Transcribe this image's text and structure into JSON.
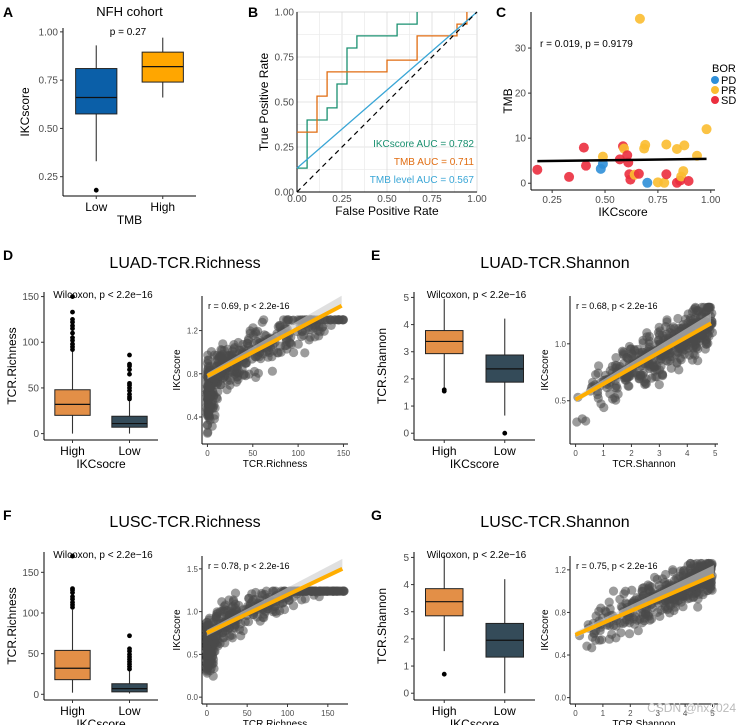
{
  "chart_data": [
    {
      "panel": "A",
      "type": "box",
      "title": "NFH cohort",
      "xlabel": "TMB",
      "ylabel": "IKCscore",
      "categories": [
        "Low",
        "High"
      ],
      "yticks": [
        "0.25",
        "0.50",
        "0.75",
        "1.00"
      ],
      "ylim": [
        0.15,
        1.02
      ],
      "annotation": "p = 0.27",
      "boxes": [
        {
          "name": "Low",
          "color": "#0b5fa8",
          "min": 0.33,
          "q1": 0.575,
          "median": 0.66,
          "q3": 0.81,
          "max": 0.93,
          "outliers": [
            0.18
          ]
        },
        {
          "name": "High",
          "color": "#ffa600",
          "min": 0.66,
          "q1": 0.74,
          "median": 0.82,
          "q3": 0.895,
          "max": 0.97,
          "outliers": []
        }
      ]
    },
    {
      "panel": "B",
      "type": "line",
      "xlabel": "False Positive Rate",
      "ylabel": "True Positive Rate",
      "xticks": [
        "0.00",
        "0.25",
        "0.50",
        "0.75",
        "1.00"
      ],
      "yticks": [
        "0.00",
        "0.25",
        "0.50",
        "0.75",
        "1.00"
      ],
      "xlim": [
        0,
        1
      ],
      "ylim": [
        0,
        1
      ],
      "grid": true,
      "series": [
        {
          "name": "IKCscore AUC = 0.782",
          "color": "#1a9070",
          "points": [
            [
              0,
              0.133
            ],
            [
              0.056,
              0.133
            ],
            [
              0.056,
              0.333
            ],
            [
              0.056,
              0.4
            ],
            [
              0.167,
              0.4
            ],
            [
              0.167,
              0.467
            ],
            [
              0.222,
              0.467
            ],
            [
              0.222,
              0.6
            ],
            [
              0.278,
              0.6
            ],
            [
              0.278,
              0.8
            ],
            [
              0.333,
              0.8
            ],
            [
              0.333,
              0.867
            ],
            [
              0.556,
              0.867
            ],
            [
              0.556,
              0.933
            ],
            [
              0.667,
              0.933
            ],
            [
              0.667,
              1.0
            ]
          ]
        },
        {
          "name": "TMB AUC = 0.711",
          "color": "#e06c10",
          "points": [
            [
              0,
              0.333
            ],
            [
              0.111,
              0.333
            ],
            [
              0.111,
              0.533
            ],
            [
              0.167,
              0.533
            ],
            [
              0.167,
              0.667
            ],
            [
              0.5,
              0.667
            ],
            [
              0.5,
              0.733
            ],
            [
              0.667,
              0.733
            ],
            [
              0.667,
              0.867
            ],
            [
              0.889,
              0.867
            ],
            [
              0.889,
              0.933
            ],
            [
              0.944,
              0.933
            ],
            [
              0.944,
              1.0
            ]
          ]
        },
        {
          "name": "TMB level AUC = 0.567",
          "color": "#3aa6d6",
          "points": [
            [
              0,
              0.133
            ],
            [
              1.0,
              1.0
            ]
          ]
        },
        {
          "name": "reference",
          "color": "#000000",
          "dashed": true,
          "points": [
            [
              0,
              0
            ],
            [
              1,
              1
            ]
          ]
        }
      ]
    },
    {
      "panel": "C",
      "type": "scatter",
      "xlabel": "IKCscore",
      "ylabel": "TMB",
      "xticks": [
        "0.25",
        "0.50",
        "0.75",
        "1.00"
      ],
      "yticks": [
        "0",
        "10",
        "20",
        "30"
      ],
      "xlim": [
        0.15,
        1.02
      ],
      "ylim": [
        -1.5,
        38
      ],
      "annotation": "r = 0.019, p = 0.9179",
      "legend": {
        "title": "BOR",
        "position": "right",
        "items": [
          {
            "label": "PD",
            "color": "#2f8fd8"
          },
          {
            "label": "PR",
            "color": "#fbbc30"
          },
          {
            "label": "SD",
            "color": "#eb2e3e"
          }
        ]
      },
      "fit": [
        [
          0.18,
          4.9
        ],
        [
          0.98,
          5.4
        ]
      ],
      "points": [
        {
          "x": 0.18,
          "y": 3,
          "g": "SD"
        },
        {
          "x": 0.33,
          "y": 1.4,
          "g": "SD"
        },
        {
          "x": 0.4,
          "y": 7.9,
          "g": "SD"
        },
        {
          "x": 0.41,
          "y": 3.9,
          "g": "SD"
        },
        {
          "x": 0.48,
          "y": 3.2,
          "g": "PD"
        },
        {
          "x": 0.49,
          "y": 4.3,
          "g": "PD"
        },
        {
          "x": 0.49,
          "y": 5.9,
          "g": "PR"
        },
        {
          "x": 0.57,
          "y": 5.3,
          "g": "SD"
        },
        {
          "x": 0.585,
          "y": 8.2,
          "g": "SD"
        },
        {
          "x": 0.59,
          "y": 7.7,
          "g": "PR"
        },
        {
          "x": 0.605,
          "y": 6.2,
          "g": "SD"
        },
        {
          "x": 0.61,
          "y": 4.6,
          "g": "SD"
        },
        {
          "x": 0.615,
          "y": 2.0,
          "g": "SD"
        },
        {
          "x": 0.62,
          "y": 0.8,
          "g": "SD"
        },
        {
          "x": 0.64,
          "y": 1.9,
          "g": "PR"
        },
        {
          "x": 0.66,
          "y": 2.1,
          "g": "SD"
        },
        {
          "x": 0.665,
          "y": 36.5,
          "g": "PR"
        },
        {
          "x": 0.685,
          "y": 7.7,
          "g": "PR"
        },
        {
          "x": 0.69,
          "y": 8.5,
          "g": "PR"
        },
        {
          "x": 0.7,
          "y": 0.1,
          "g": "PD"
        },
        {
          "x": 0.75,
          "y": 0.2,
          "g": "PR"
        },
        {
          "x": 0.78,
          "y": 0.1,
          "g": "PR"
        },
        {
          "x": 0.79,
          "y": 2.0,
          "g": "SD"
        },
        {
          "x": 0.79,
          "y": 8.6,
          "g": "PR"
        },
        {
          "x": 0.84,
          "y": 7.6,
          "g": "PR"
        },
        {
          "x": 0.84,
          "y": 0.1,
          "g": "SD"
        },
        {
          "x": 0.855,
          "y": 0.6,
          "g": "SD"
        },
        {
          "x": 0.86,
          "y": 1.5,
          "g": "PR"
        },
        {
          "x": 0.87,
          "y": 2.7,
          "g": "PR"
        },
        {
          "x": 0.875,
          "y": 8.4,
          "g": "PR"
        },
        {
          "x": 0.895,
          "y": 0.5,
          "g": "SD"
        },
        {
          "x": 0.935,
          "y": 6.1,
          "g": "PR"
        },
        {
          "x": 0.98,
          "y": 12.0,
          "g": "PR"
        }
      ]
    },
    {
      "panel": "D",
      "type": "box+scatter",
      "title": "LUAD-TCR.Richness",
      "box": {
        "xlabel": "IKCsocre",
        "ylabel": "TCR.Richness",
        "categories": [
          "High",
          "Low"
        ],
        "yticks": [
          "0",
          "50",
          "100",
          "150"
        ],
        "ylim": [
          -7,
          155
        ],
        "annotation": "Wilcoxon, p < 2.2e−16",
        "boxes": [
          {
            "name": "High",
            "color": "#e38f47",
            "min": 0,
            "q1": 20,
            "median": 32,
            "q3": 48,
            "max": 90,
            "outliers": [
              92,
              95,
              98,
              102,
              105,
              110,
              115,
              118,
              122,
              125,
              133,
              150
            ]
          },
          {
            "name": "Low",
            "color": "#344b59",
            "min": 0,
            "q1": 7,
            "median": 11,
            "q3": 19,
            "max": 36,
            "outliers": [
              38,
              40,
              43,
              47,
              50,
              53,
              55,
              65,
              70,
              74,
              76,
              86
            ]
          }
        ]
      },
      "scatter": {
        "xlabel": "TCR.Richness",
        "ylabel": "IKCscore",
        "xticks": [
          "0",
          "50",
          "100",
          "150"
        ],
        "yticks": [
          "0.4",
          "0.8",
          "1.2"
        ],
        "xlim": [
          -6,
          155
        ],
        "ylim": [
          0.15,
          1.52
        ],
        "annotation": "r = 0.69, p < 2.2e-16",
        "fit": {
          "x0": 0,
          "y0": 0.78,
          "x1": 148,
          "y1": 1.43,
          "color": "#ffae00"
        },
        "cloud": {
          "seed": 11,
          "n": 420,
          "xmax": 150,
          "ymin": 0.25,
          "ymax": 1.3,
          "slope": 0.0044,
          "intercept": 0.78,
          "noise": 0.14,
          "skew": 2.2
        }
      }
    },
    {
      "panel": "E",
      "type": "box+scatter",
      "title": "LUAD-TCR.Shannon",
      "box": {
        "xlabel": "IKCscore",
        "ylabel": "TCR.Shannon",
        "categories": [
          "High",
          "Low"
        ],
        "yticks": [
          "0",
          "1",
          "2",
          "3",
          "4",
          "5"
        ],
        "ylim": [
          -0.25,
          5.2
        ],
        "annotation": "Wilcoxon, p < 2.2e−16",
        "boxes": [
          {
            "name": "High",
            "color": "#e38f47",
            "min": 1.65,
            "q1": 2.93,
            "median": 3.38,
            "q3": 3.78,
            "max": 4.95,
            "outliers": [
              1.55,
              1.6
            ]
          },
          {
            "name": "Low",
            "color": "#344b59",
            "min": 0.65,
            "q1": 1.88,
            "median": 2.37,
            "q3": 2.88,
            "max": 4.22,
            "outliers": [
              0.0
            ]
          }
        ]
      },
      "scatter": {
        "xlabel": "TCR.Shannon",
        "ylabel": "IKCscore",
        "xticks": [
          "0",
          "1",
          "2",
          "3",
          "4",
          "5"
        ],
        "yticks": [
          "0.5",
          "1.0"
        ],
        "xlim": [
          -0.2,
          5.1
        ],
        "ylim": [
          0.12,
          1.42
        ],
        "annotation": "r = 0.68, p < 2.2e-16",
        "fit": {
          "x0": 0,
          "y0": 0.51,
          "x1": 4.85,
          "y1": 1.18,
          "color": "#ffae00"
        },
        "cloud": {
          "seed": 23,
          "n": 420,
          "xmax": 4.9,
          "ymin": 0.25,
          "ymax": 1.32,
          "slope": 0.138,
          "intercept": 0.51,
          "noise": 0.13,
          "skew": 0.55
        }
      }
    },
    {
      "panel": "F",
      "type": "box+scatter",
      "title": "LUSC-TCR.Richness",
      "box": {
        "xlabel": "IKCscore",
        "ylabel": "TCR.Richness",
        "categories": [
          "High",
          "Low"
        ],
        "yticks": [
          "0",
          "50",
          "100",
          "150"
        ],
        "ylim": [
          -7,
          175
        ],
        "annotation": "Wilcoxon, p < 2.2e−16",
        "boxes": [
          {
            "name": "High",
            "color": "#e38f47",
            "min": 2,
            "q1": 18,
            "median": 32,
            "q3": 54,
            "max": 104,
            "outliers": [
              107,
              110,
              113,
              117,
              120,
              125,
              128,
              130,
              170
            ]
          },
          {
            "name": "Low",
            "color": "#344b59",
            "min": 1,
            "q1": 3,
            "median": 7,
            "q3": 13,
            "max": 29,
            "outliers": [
              31,
              34,
              37,
              40,
              43,
              46,
              49,
              53,
              56,
              72
            ]
          }
        ]
      },
      "scatter": {
        "xlabel": "TCR.Richness",
        "ylabel": "IKCscore",
        "xticks": [
          "0",
          "50",
          "100",
          "150"
        ],
        "yticks": [
          "0.0",
          "0.5",
          "1.0",
          "1.5"
        ],
        "xlim": [
          -6,
          175
        ],
        "ylim": [
          -0.08,
          1.65
        ],
        "annotation": "r = 0.78, p < 2.2e-16",
        "fit": {
          "x0": 0,
          "y0": 0.75,
          "x1": 168,
          "y1": 1.5,
          "color": "#ffae00"
        },
        "cloud": {
          "seed": 37,
          "n": 420,
          "xmax": 170,
          "ymin": 0.2,
          "ymax": 1.24,
          "slope": 0.0046,
          "intercept": 0.77,
          "noise": 0.14,
          "skew": 2.4
        }
      }
    },
    {
      "panel": "G",
      "type": "box+scatter",
      "title": "LUSC-TCR.Shannon",
      "box": {
        "xlabel": "IKCscore",
        "ylabel": "TCR.Shannon",
        "categories": [
          "High",
          "Low"
        ],
        "yticks": [
          "0",
          "1",
          "2",
          "3",
          "4",
          "5"
        ],
        "ylim": [
          -0.25,
          5.2
        ],
        "annotation": "Wilcoxon, p < 2.2e−16",
        "boxes": [
          {
            "name": "High",
            "color": "#e38f47",
            "min": 1.55,
            "q1": 2.85,
            "median": 3.37,
            "q3": 3.85,
            "max": 5.1,
            "outliers": [
              0.7
            ]
          },
          {
            "name": "Low",
            "color": "#344b59",
            "min": 0.0,
            "q1": 1.33,
            "median": 1.95,
            "q3": 2.57,
            "max": 4.2,
            "outliers": []
          }
        ]
      },
      "scatter": {
        "xlabel": "TCR.Shannon",
        "ylabel": "IKCscore",
        "xticks": [
          "0",
          "1",
          "2",
          "3",
          "4",
          "5"
        ],
        "yticks": [
          "0.0",
          "0.4",
          "0.8",
          "1.2"
        ],
        "xlim": [
          -0.2,
          5.2
        ],
        "ylim": [
          -0.06,
          1.33
        ],
        "annotation": "r = 0.75, p < 2.2e-16",
        "fit": {
          "x0": 0,
          "y0": 0.59,
          "x1": 5.05,
          "y1": 1.15,
          "color": "#ffae00"
        },
        "cloud": {
          "seed": 51,
          "n": 420,
          "xmax": 5.0,
          "ymin": 0.2,
          "ymax": 1.26,
          "slope": 0.112,
          "intercept": 0.6,
          "noise": 0.12,
          "skew": 0.45
        }
      }
    }
  ],
  "panel_labels": [
    "A",
    "B",
    "C",
    "D",
    "E",
    "F",
    "G"
  ],
  "watermark": "CSDN @hx2024"
}
